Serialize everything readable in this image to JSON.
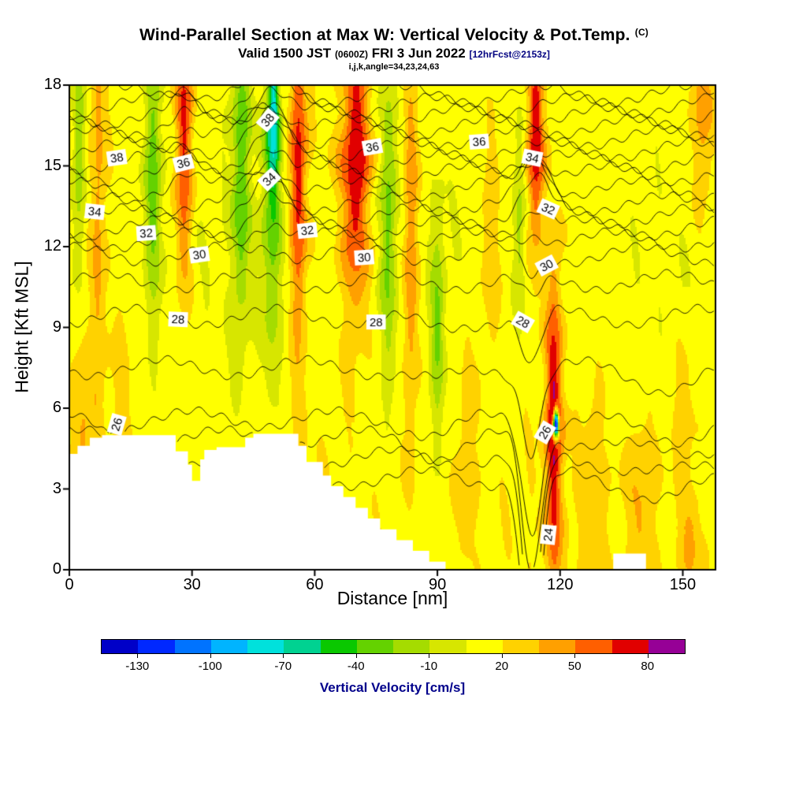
{
  "header": {
    "title": "Wind-Parallel Section at Max W: Vertical Velocity & Pot.Temp.",
    "title_unit": "(C)",
    "valid_main": "Valid 1500 JST",
    "valid_small": "(0600Z)",
    "valid_date": "FRI 3 Jun 2022",
    "valid_tag": "[12hrFcst@2153z]",
    "ijk_line": "i,j,k,angle=34,23,24,63"
  },
  "chart_data": {
    "type": "heatmap",
    "title": "Wind-Parallel Section at Max W: Vertical Velocity & Pot.Temp. (C)",
    "subtitle": "Valid 1500 JST (0600Z) FRI 3 Jun 2022 [12hrFcst@2153z]",
    "xlabel": "Distance [nm]",
    "ylabel": "Height [Kft MSL]",
    "xlim": [
      0,
      158
    ],
    "ylim": [
      0,
      18
    ],
    "xticks": [
      0,
      30,
      60,
      90,
      120,
      150
    ],
    "yticks": [
      0,
      3,
      6,
      9,
      12,
      15,
      18
    ],
    "grid": false,
    "colorbar": {
      "label": "Vertical Velocity [cm/s]",
      "ticks": [
        -130,
        -100,
        -70,
        -40,
        -10,
        20,
        50,
        80
      ],
      "levels": [
        -145,
        -130,
        -115,
        -100,
        -85,
        -70,
        -55,
        -40,
        -25,
        -10,
        5,
        20,
        35,
        50,
        65,
        80,
        95
      ],
      "colors": [
        "#0000c8",
        "#0028ff",
        "#0073ff",
        "#00b4ff",
        "#00e1dc",
        "#00d291",
        "#0ac800",
        "#64d200",
        "#a5dc00",
        "#d7e600",
        "#ffff00",
        "#ffd200",
        "#ffa000",
        "#ff5f00",
        "#e10000",
        "#960096"
      ]
    },
    "contour_variable": "Potential Temperature (C)",
    "contour_levels": {
      "23": 3.4,
      "24": 4.15,
      "25": 4.9,
      "26": 5.6,
      "27": 7.5,
      "28": 9.4,
      "29": 10.7,
      "30": 11.7,
      "31": 12.25,
      "32": 12.7,
      "33": 13.15,
      "34": 13.6,
      "35": 14.15,
      "36": 14.7,
      "37": 15.15,
      "38": 15.6,
      "39": 16.05,
      "40": 16.45,
      "41": 16.85,
      "42": 17.25,
      "43": 17.65
    },
    "contour_labels": [
      {
        "value": 38,
        "x": 11.6,
        "y": 15.3,
        "rot": -8
      },
      {
        "value": 36,
        "x": 27.9,
        "y": 15.1,
        "rot": -14
      },
      {
        "value": 34,
        "x": 6.2,
        "y": 13.3,
        "rot": 6
      },
      {
        "value": 32,
        "x": 18.8,
        "y": 12.5,
        "rot": -4
      },
      {
        "value": 30,
        "x": 31.8,
        "y": 11.7,
        "rot": -8
      },
      {
        "value": 28,
        "x": 26.6,
        "y": 9.3,
        "rot": 2
      },
      {
        "value": 26,
        "x": 11.6,
        "y": 5.4,
        "rot": -74
      },
      {
        "value": 38,
        "x": 48.5,
        "y": 16.7,
        "rot": -50
      },
      {
        "value": 34,
        "x": 48.9,
        "y": 14.5,
        "rot": -44
      },
      {
        "value": 32,
        "x": 58.2,
        "y": 12.6,
        "rot": -6
      },
      {
        "value": 30,
        "x": 72.1,
        "y": 11.6,
        "rot": -4
      },
      {
        "value": 28,
        "x": 75.0,
        "y": 9.2,
        "rot": 0
      },
      {
        "value": 36,
        "x": 74.1,
        "y": 15.7,
        "rot": -10
      },
      {
        "value": 36,
        "x": 100.2,
        "y": 15.9,
        "rot": -4
      },
      {
        "value": 34,
        "x": 113.2,
        "y": 15.3,
        "rot": 12
      },
      {
        "value": 32,
        "x": 117.1,
        "y": 13.4,
        "rot": 24
      },
      {
        "value": 30,
        "x": 116.7,
        "y": 11.3,
        "rot": -28
      },
      {
        "value": 28,
        "x": 110.9,
        "y": 9.2,
        "rot": 30
      },
      {
        "value": 26,
        "x": 116.3,
        "y": 5.1,
        "rot": -60
      },
      {
        "value": 24,
        "x": 117.1,
        "y": 1.3,
        "rot": -84
      }
    ],
    "background_w": 12,
    "velocity_bands": [
      {
        "x": 2.5,
        "w": 1.6,
        "amp": -38,
        "ybot": 9,
        "ytop": 18,
        "ypeak": 16
      },
      {
        "x": 7,
        "w": 2.0,
        "amp": 26,
        "ybot": 0,
        "ytop": 18,
        "ypeak": 13
      },
      {
        "x": 3,
        "w": 2.5,
        "amp": 22,
        "ybot": 0,
        "ytop": 9,
        "ypeak": 4
      },
      {
        "x": 13,
        "w": 2.0,
        "amp": 16,
        "ybot": 0,
        "ytop": 12,
        "ypeak": 5
      },
      {
        "x": 20.5,
        "w": 2.0,
        "amp": -46,
        "ybot": 7,
        "ytop": 18,
        "ypeak": 15
      },
      {
        "x": 28,
        "w": 2.2,
        "amp": 56,
        "ybot": 6,
        "ytop": 18,
        "ypeak": 16
      },
      {
        "x": 42,
        "w": 2.2,
        "amp": -50,
        "ybot": 6,
        "ytop": 18,
        "ypeak": 15
      },
      {
        "x": 50,
        "w": 1.4,
        "amp": -60,
        "ybot": 12,
        "ytop": 18,
        "ypeak": 17.3
      },
      {
        "x": 49.5,
        "w": 2.6,
        "amp": -44,
        "ybot": 4,
        "ytop": 18,
        "ypeak": 14
      },
      {
        "x": 56,
        "w": 2.0,
        "amp": 58,
        "ybot": 4,
        "ytop": 18,
        "ypeak": 15
      },
      {
        "x": 70,
        "w": 3.4,
        "amp": 66,
        "ybot": 7,
        "ytop": 18,
        "ypeak": 15
      },
      {
        "x": 78,
        "w": 2.0,
        "amp": -42,
        "ybot": 6,
        "ytop": 18,
        "ypeak": 13
      },
      {
        "x": 83.5,
        "w": 2.0,
        "amp": 38,
        "ybot": 3,
        "ytop": 18,
        "ypeak": 12
      },
      {
        "x": 90,
        "w": 1.6,
        "amp": -36,
        "ybot": 5,
        "ytop": 13,
        "ypeak": 9
      },
      {
        "x": 97,
        "w": 3.0,
        "amp": 16,
        "ybot": 0,
        "ytop": 10,
        "ypeak": 5
      },
      {
        "x": 103,
        "w": 2.5,
        "amp": 22,
        "ybot": 8,
        "ytop": 16,
        "ypeak": 12
      },
      {
        "x": 110,
        "w": 1.4,
        "amp": -30,
        "ybot": 9,
        "ytop": 17,
        "ypeak": 13
      },
      {
        "x": 114,
        "w": 2.0,
        "amp": 62,
        "ybot": 10,
        "ytop": 18,
        "ypeak": 16
      },
      {
        "x": 118.5,
        "w": 2.0,
        "amp": 66,
        "ybot": 0,
        "ytop": 12,
        "ypeak": 5.5
      },
      {
        "x": 119,
        "w": 0.6,
        "amp": -215,
        "ybot": 5.15,
        "ytop": 5.65,
        "ypeak": 5.4
      },
      {
        "x": 128,
        "w": 3.0,
        "amp": 16,
        "ybot": 0,
        "ytop": 8,
        "ypeak": 3
      },
      {
        "x": 140,
        "w": 4.0,
        "amp": 22,
        "ybot": 0,
        "ytop": 7,
        "ypeak": 2.5
      },
      {
        "x": 150,
        "w": 3.0,
        "amp": 18,
        "ybot": 3,
        "ytop": 9,
        "ypeak": 6
      },
      {
        "x": 155,
        "w": 3.0,
        "amp": 30,
        "ybot": 10,
        "ytop": 18,
        "ypeak": 17
      },
      {
        "x": 152,
        "w": 3.0,
        "amp": 24,
        "ybot": 0,
        "ytop": 4,
        "ypeak": 1
      }
    ],
    "terrain_steps": [
      [
        0,
        4.3
      ],
      [
        2,
        4.6
      ],
      [
        5,
        4.9
      ],
      [
        8,
        5.0
      ],
      [
        26,
        4.4
      ],
      [
        29,
        3.9
      ],
      [
        30,
        3.3
      ],
      [
        32,
        4.1
      ],
      [
        33,
        4.45
      ],
      [
        36,
        4.55
      ],
      [
        43,
        4.9
      ],
      [
        45,
        5.05
      ],
      [
        54,
        5.05
      ],
      [
        56,
        4.6
      ],
      [
        58,
        4.0
      ],
      [
        62,
        3.5
      ],
      [
        64,
        3.1
      ],
      [
        67,
        2.7
      ],
      [
        70,
        2.3
      ],
      [
        73,
        1.9
      ],
      [
        76,
        1.5
      ],
      [
        80,
        1.1
      ],
      [
        84,
        0.7
      ],
      [
        88,
        0.3
      ],
      [
        92,
        0
      ]
    ],
    "terrain_island": {
      "x0": 133,
      "x1": 141,
      "h": 0.6
    }
  }
}
